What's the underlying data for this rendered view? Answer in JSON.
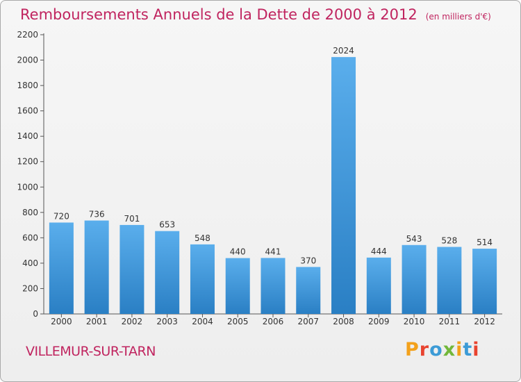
{
  "header": {
    "title": "Remboursements Annuels de la Dette de 2000 à 2012",
    "unit": "(en milliers d'€)"
  },
  "footer": {
    "commune": "VILLEMUR-SUR-TARN",
    "logo_text": "Proxiti"
  },
  "colors": {
    "title": "#c0245f",
    "bar_light": "#5aaeec",
    "bar_dark": "#2a7fc4",
    "logo": [
      "#f3a11b",
      "#e8432f",
      "#3c9bd6",
      "#72b73a",
      "#f3a11b",
      "#3c9bd6",
      "#e8432f"
    ]
  },
  "chart_data": {
    "type": "bar",
    "title": "Remboursements Annuels de la Dette de 2000 à 2012",
    "subtitle": "(en milliers d'€)",
    "categories": [
      "2000",
      "2001",
      "2002",
      "2003",
      "2004",
      "2005",
      "2006",
      "2007",
      "2008",
      "2009",
      "2010",
      "2011",
      "2012"
    ],
    "values": [
      720,
      736,
      701,
      653,
      548,
      440,
      441,
      370,
      2024,
      444,
      543,
      528,
      514
    ],
    "ylim": [
      0,
      2200
    ],
    "yticks": [
      0,
      200,
      400,
      600,
      800,
      1000,
      1200,
      1400,
      1600,
      1800,
      2000,
      2200
    ],
    "grid": false,
    "legend": "none"
  }
}
